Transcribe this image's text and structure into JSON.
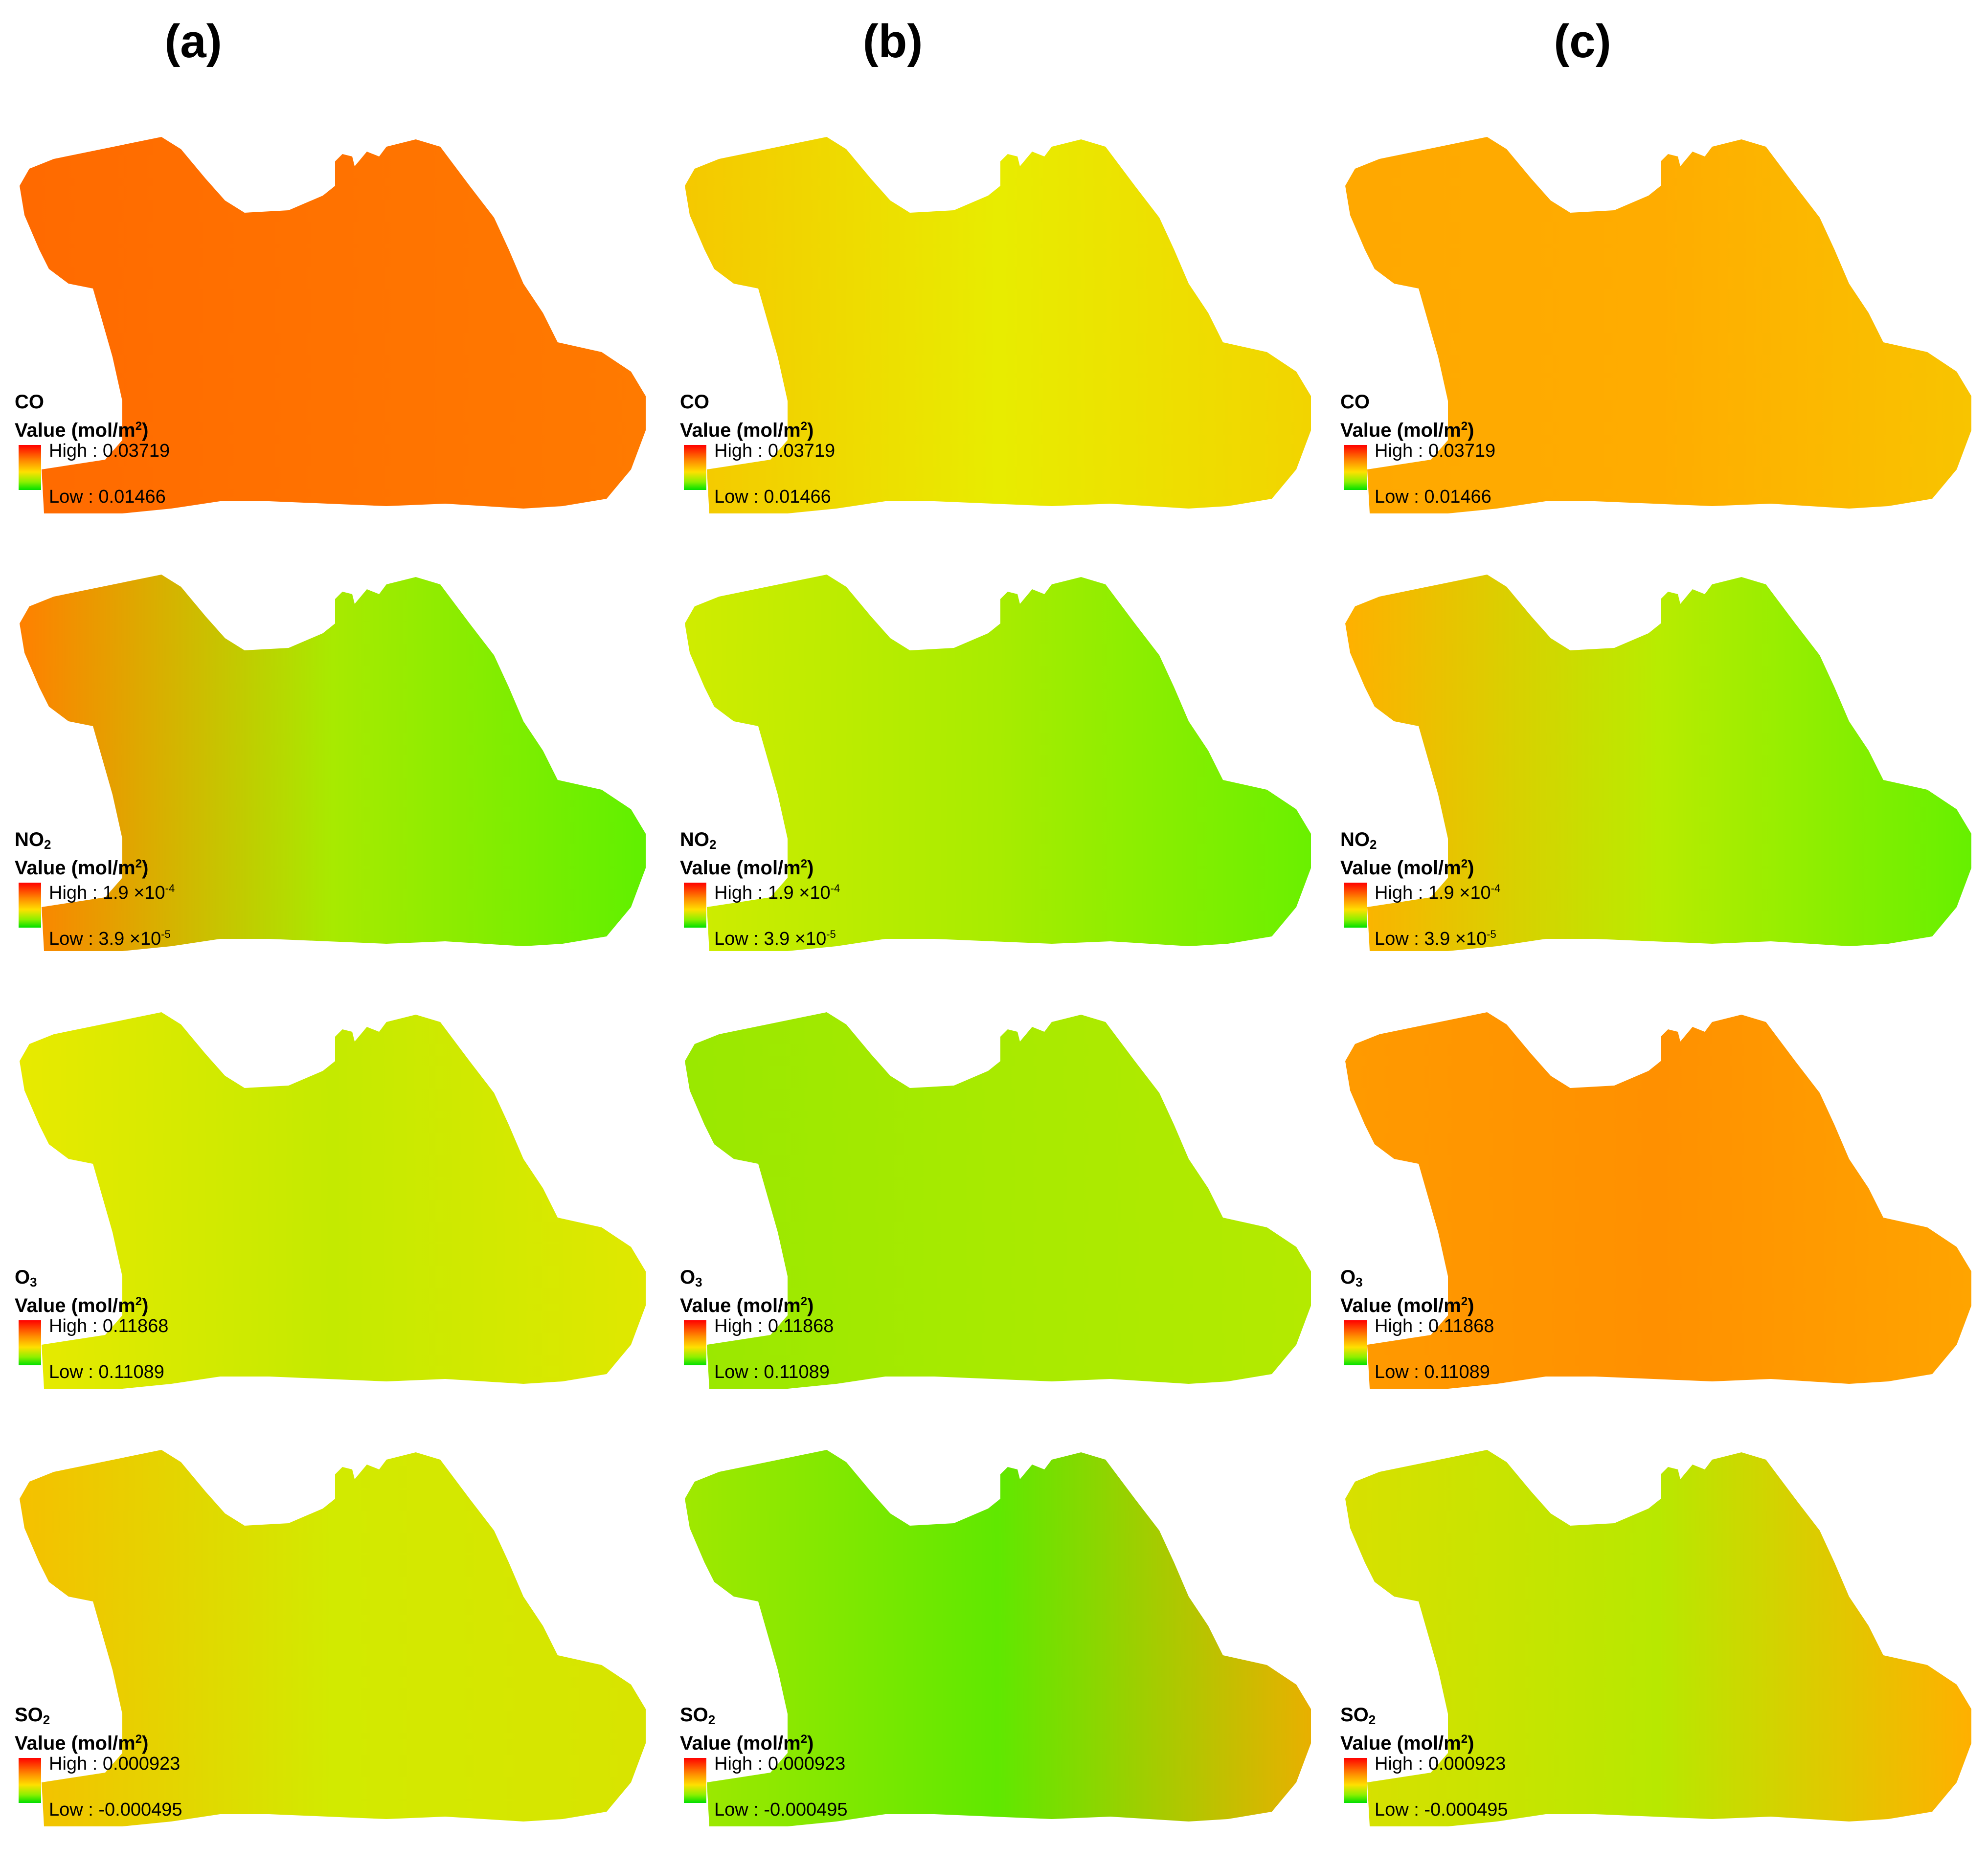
{
  "columns": [
    "(a)",
    "(b)",
    "(c)"
  ],
  "value_label": "Value (mol/m",
  "value_label_sup": "2",
  "value_label_end": ")",
  "rows": [
    {
      "pollutant": "CO",
      "pollutant_sub": "",
      "high_text": "High : 0.03719",
      "high_sup": "",
      "low_text": "Low : 0.01466",
      "low_sup": "",
      "colors": [
        [
          "#ff6a00",
          "#ff7200",
          "#ff7a00"
        ],
        [
          "#f5c800",
          "#e8ec00",
          "#f2d400"
        ],
        [
          "#ffa800",
          "#ffac00",
          "#f8c400"
        ]
      ]
    },
    {
      "pollutant": "NO",
      "pollutant_sub": "2",
      "high_text": "High : 1.9 ×10",
      "high_sup": "-4",
      "low_text": "Low : 3.9 ×10",
      "low_sup": "-5",
      "colors": [
        [
          "#ff8000",
          "#a8ea00",
          "#60f000"
        ],
        [
          "#d0ec00",
          "#a8ec00",
          "#6af000"
        ],
        [
          "#ffb000",
          "#b8ec00",
          "#66f000"
        ]
      ]
    },
    {
      "pollutant": "O",
      "pollutant_sub": "3",
      "high_text": "High : 0.11868",
      "high_sup": "",
      "low_text": "Low : 0.11089",
      "low_sup": "",
      "colors": [
        [
          "#e8ea00",
          "#c4ea00",
          "#e0e800"
        ],
        [
          "#9ae800",
          "#a8ea00",
          "#b4ea00"
        ],
        [
          "#ff9a00",
          "#ff9000",
          "#ffa400"
        ]
      ]
    },
    {
      "pollutant": "SO",
      "pollutant_sub": "2",
      "high_text": "High : 0.000923",
      "high_sup": "",
      "low_text": "Low : -0.000495",
      "low_sup": "",
      "colors": [
        [
          "#f5c000",
          "#d2ea00",
          "#d8e400"
        ],
        [
          "#a0e800",
          "#60e800",
          "#e8b000"
        ],
        [
          "#d8e000",
          "#b8e800",
          "#ffb000"
        ]
      ]
    }
  ]
}
